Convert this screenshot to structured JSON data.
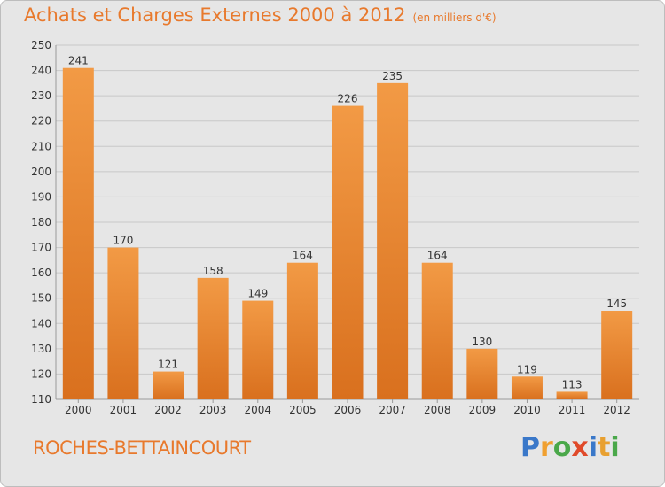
{
  "title": "Achats et Charges Externes 2000 à 2012",
  "unit": "(en milliers d'€)",
  "place": "ROCHES-BETTAINCOURT",
  "logo": {
    "letters": [
      "P",
      "r",
      "o",
      "x",
      "i",
      "t",
      "i"
    ],
    "colors": [
      "#3a78c9",
      "#f0a030",
      "#4aa84a",
      "#e04a2a",
      "#3a78c9",
      "#e8a030",
      "#4aa84a"
    ]
  },
  "colors": {
    "bar": "#f29a45",
    "bar_dark": "#d9701e",
    "text_orange": "#e8792c",
    "grid": "#c8c8c8"
  },
  "chart_data": {
    "type": "bar",
    "title": "Achats et Charges Externes 2000 à 2012",
    "categories": [
      "2000",
      "2001",
      "2002",
      "2003",
      "2004",
      "2005",
      "2006",
      "2007",
      "2008",
      "2009",
      "2010",
      "2011",
      "2012"
    ],
    "values": [
      241,
      170,
      121,
      158,
      149,
      164,
      226,
      235,
      164,
      130,
      119,
      113,
      145
    ],
    "ylim": [
      110,
      250
    ],
    "yticks": [
      110,
      120,
      130,
      140,
      150,
      160,
      170,
      180,
      190,
      200,
      210,
      220,
      230,
      240,
      250
    ],
    "grid": true
  }
}
